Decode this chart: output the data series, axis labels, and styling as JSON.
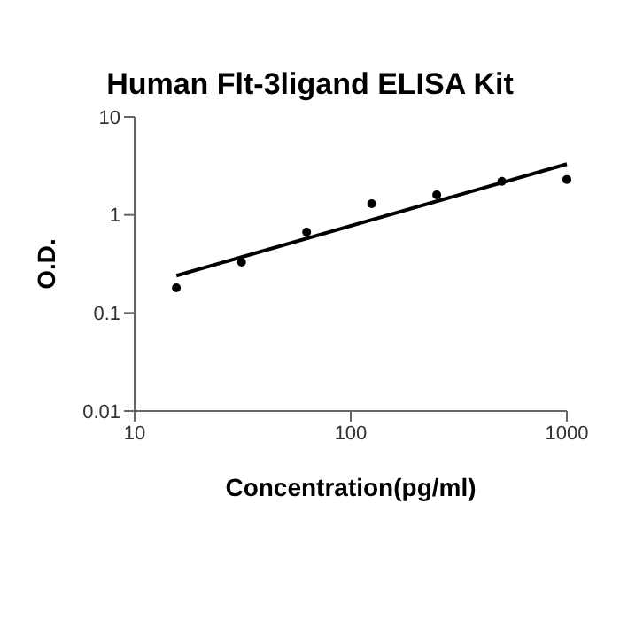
{
  "chart_data": {
    "type": "scatter",
    "title": "Human Flt-3ligand ELISA Kit",
    "xlabel": "Concentration(pg/ml)",
    "ylabel": "O.D.",
    "log": "xy",
    "grid": false,
    "legend": false,
    "marker": "circle",
    "xlim": [
      10,
      1000
    ],
    "xticks": [
      10,
      100,
      1000
    ],
    "ylim": [
      0.01,
      10
    ],
    "yticks": [
      0.01,
      0.1,
      1,
      10
    ],
    "series": [
      {
        "color": "#000000",
        "x": [
          15.6,
          31.25,
          62.5,
          125,
          250,
          500,
          1000
        ],
        "values": [
          0.18,
          0.33,
          0.67,
          1.3,
          1.6,
          2.2,
          2.3
        ]
      },
      {
        "type": "line",
        "color": "#000000",
        "marker": "none",
        "line_style": "solid",
        "x": [
          15.6,
          1000
        ],
        "values": [
          0.24,
          3.3
        ]
      }
    ]
  }
}
